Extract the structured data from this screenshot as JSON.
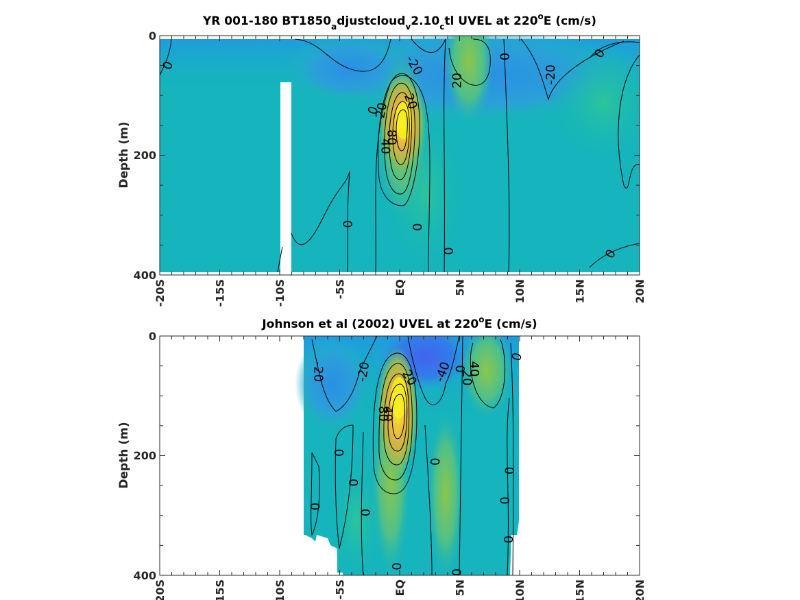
{
  "chart_data": [
    {
      "type": "contour",
      "title_main": "YR 001-180 BT1850",
      "title_sub1": "a",
      "title_mid1": "djustcloud",
      "title_sub2": "v",
      "title_mid2": "2.10",
      "title_sub3": "c",
      "title_mid3": "tl UVEL at 220",
      "title_sup": "o",
      "title_end": "E (cm/s)",
      "ylabel": "Depth (m)",
      "xlim": [
        -20,
        20
      ],
      "ylim": [
        0,
        400
      ],
      "y_ticks": [
        "0",
        "200",
        "400"
      ],
      "x_ticks": [
        "-20S",
        "-15S",
        "-10S",
        "-5S",
        "EQ",
        "5N",
        "10N",
        "15N",
        "20N"
      ],
      "x_tick_values": [
        -20,
        -15,
        -10,
        -5,
        0,
        5,
        10,
        15,
        20
      ],
      "data_x_range": [
        -20,
        20
      ],
      "core": {
        "lat": 0,
        "depth": 160,
        "max_speed": 90
      },
      "contour_labels": [
        {
          "text": "0",
          "lat": -19.3,
          "depth": 50,
          "rot": -70
        },
        {
          "text": "-20",
          "lat": 1.2,
          "depth": 50,
          "rot": 60
        },
        {
          "text": "20",
          "lat": 4.8,
          "depth": 75,
          "rot": -90
        },
        {
          "text": "0",
          "lat": 8.8,
          "depth": 35,
          "rot": -90
        },
        {
          "text": "-20",
          "lat": 12.6,
          "depth": 65,
          "rot": -90
        },
        {
          "text": "0",
          "lat": 16.7,
          "depth": 30,
          "rot": -60
        },
        {
          "text": "0",
          "lat": -2.2,
          "depth": 125,
          "rot": -70
        },
        {
          "text": "20",
          "lat": -1.5,
          "depth": 125,
          "rot": -80
        },
        {
          "text": "20",
          "lat": 0.9,
          "depth": 110,
          "rot": 70
        },
        {
          "text": "80",
          "lat": -0.7,
          "depth": 170,
          "rot": 90
        },
        {
          "text": "40",
          "lat": -1.2,
          "depth": 185,
          "rot": 90
        },
        {
          "text": "0",
          "lat": -4.3,
          "depth": 315,
          "rot": -90
        },
        {
          "text": "0",
          "lat": 1.5,
          "depth": 320,
          "rot": -90
        },
        {
          "text": "0",
          "lat": 4.1,
          "depth": 360,
          "rot": -90
        },
        {
          "text": "0",
          "lat": 17.6,
          "depth": 365,
          "rot": -60
        }
      ]
    },
    {
      "type": "contour",
      "title_main": "Johnson et al (2002) UVEL at 220",
      "title_sup": "o",
      "title_end": "E (cm/s)",
      "ylabel": "Depth (m)",
      "xlim": [
        -20,
        20
      ],
      "ylim": [
        0,
        400
      ],
      "y_ticks": [
        "0",
        "200",
        "400"
      ],
      "x_ticks": [
        "-20S",
        "-15S",
        "-10S",
        "-5S",
        "EQ",
        "5N",
        "10N",
        "15N",
        "20N"
      ],
      "x_tick_values": [
        -20,
        -15,
        -10,
        -5,
        0,
        5,
        10,
        15,
        20
      ],
      "data_x_range": [
        -8,
        10
      ],
      "core": {
        "lat": -0.2,
        "depth": 115,
        "max_speed": 90
      },
      "contour_labels": [
        {
          "text": "-20",
          "lat": -6.8,
          "depth": 60,
          "rot": 90
        },
        {
          "text": "-20",
          "lat": -3.0,
          "depth": 60,
          "rot": -80
        },
        {
          "text": "20",
          "lat": 0.8,
          "depth": 70,
          "rot": 60
        },
        {
          "text": "-40",
          "lat": 3.6,
          "depth": 60,
          "rot": -70
        },
        {
          "text": "0",
          "lat": 5.0,
          "depth": 55,
          "rot": 90
        },
        {
          "text": "20",
          "lat": 5.6,
          "depth": 70,
          "rot": 90
        },
        {
          "text": "40",
          "lat": 6.2,
          "depth": 55,
          "rot": 90
        },
        {
          "text": "0",
          "lat": 9.8,
          "depth": 35,
          "rot": -70
        },
        {
          "text": "40",
          "lat": -1.0,
          "depth": 130,
          "rot": 90
        },
        {
          "text": "80",
          "lat": -1.4,
          "depth": 130,
          "rot": 90
        },
        {
          "text": "0",
          "lat": -5.0,
          "depth": 195,
          "rot": -90
        },
        {
          "text": "0",
          "lat": -3.8,
          "depth": 245,
          "rot": -90
        },
        {
          "text": "0",
          "lat": -7.0,
          "depth": 285,
          "rot": -90
        },
        {
          "text": "0",
          "lat": -2.8,
          "depth": 295,
          "rot": -90
        },
        {
          "text": "0",
          "lat": 3.0,
          "depth": 210,
          "rot": -90
        },
        {
          "text": "0",
          "lat": 9.2,
          "depth": 225,
          "rot": -90
        },
        {
          "text": "0",
          "lat": 8.8,
          "depth": 275,
          "rot": -90
        },
        {
          "text": "0",
          "lat": 9.1,
          "depth": 340,
          "rot": -90
        },
        {
          "text": "0",
          "lat": -0.2,
          "depth": 385,
          "rot": -90
        },
        {
          "text": "0",
          "lat": 4.8,
          "depth": 395,
          "rot": -90
        }
      ]
    }
  ]
}
